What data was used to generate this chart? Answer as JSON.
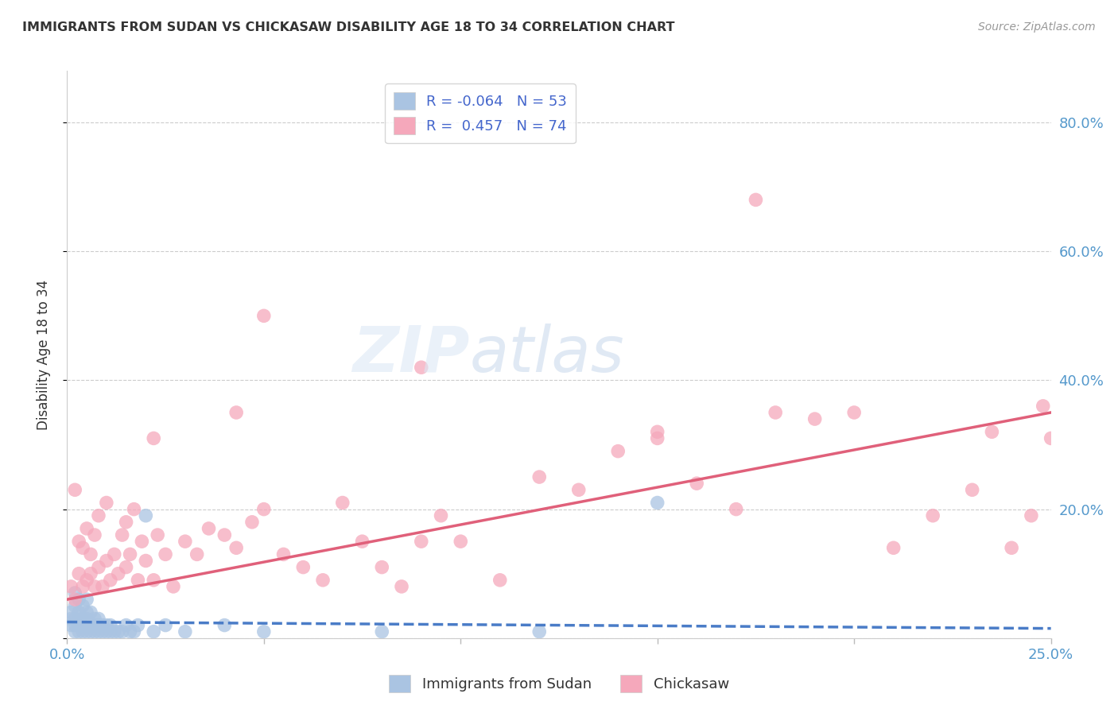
{
  "title": "IMMIGRANTS FROM SUDAN VS CHICKASAW DISABILITY AGE 18 TO 34 CORRELATION CHART",
  "source": "Source: ZipAtlas.com",
  "ylabel": "Disability Age 18 to 34",
  "xlim": [
    0.0,
    0.25
  ],
  "ylim": [
    0.0,
    0.88
  ],
  "blue_R": -0.064,
  "blue_N": 53,
  "pink_R": 0.457,
  "pink_N": 74,
  "blue_color": "#aac4e2",
  "pink_color": "#f5a8bb",
  "blue_line_color": "#4a7cc7",
  "pink_line_color": "#e0607a",
  "legend_label_blue": "Immigrants from Sudan",
  "legend_label_pink": "Chickasaw",
  "blue_scatter_x": [
    0.001,
    0.001,
    0.001,
    0.002,
    0.002,
    0.002,
    0.002,
    0.002,
    0.003,
    0.003,
    0.003,
    0.003,
    0.003,
    0.004,
    0.004,
    0.004,
    0.004,
    0.005,
    0.005,
    0.005,
    0.005,
    0.005,
    0.006,
    0.006,
    0.006,
    0.007,
    0.007,
    0.007,
    0.008,
    0.008,
    0.008,
    0.009,
    0.009,
    0.01,
    0.01,
    0.011,
    0.011,
    0.012,
    0.013,
    0.014,
    0.015,
    0.016,
    0.017,
    0.018,
    0.02,
    0.022,
    0.025,
    0.03,
    0.04,
    0.05,
    0.08,
    0.12,
    0.15
  ],
  "blue_scatter_y": [
    0.02,
    0.03,
    0.04,
    0.01,
    0.02,
    0.03,
    0.05,
    0.07,
    0.01,
    0.02,
    0.03,
    0.04,
    0.06,
    0.01,
    0.02,
    0.03,
    0.05,
    0.01,
    0.02,
    0.03,
    0.04,
    0.06,
    0.01,
    0.02,
    0.04,
    0.01,
    0.02,
    0.03,
    0.01,
    0.02,
    0.03,
    0.01,
    0.02,
    0.01,
    0.02,
    0.01,
    0.02,
    0.01,
    0.01,
    0.01,
    0.02,
    0.01,
    0.01,
    0.02,
    0.19,
    0.01,
    0.02,
    0.01,
    0.02,
    0.01,
    0.01,
    0.01,
    0.21
  ],
  "pink_scatter_x": [
    0.001,
    0.002,
    0.002,
    0.003,
    0.003,
    0.004,
    0.004,
    0.005,
    0.005,
    0.006,
    0.006,
    0.007,
    0.007,
    0.008,
    0.008,
    0.009,
    0.01,
    0.01,
    0.011,
    0.012,
    0.013,
    0.014,
    0.015,
    0.015,
    0.016,
    0.017,
    0.018,
    0.019,
    0.02,
    0.022,
    0.023,
    0.025,
    0.027,
    0.03,
    0.033,
    0.036,
    0.04,
    0.043,
    0.047,
    0.05,
    0.055,
    0.06,
    0.065,
    0.07,
    0.075,
    0.08,
    0.085,
    0.09,
    0.095,
    0.1,
    0.11,
    0.12,
    0.13,
    0.14,
    0.15,
    0.16,
    0.17,
    0.18,
    0.19,
    0.2,
    0.21,
    0.22,
    0.23,
    0.235,
    0.24,
    0.245,
    0.248,
    0.25,
    0.022,
    0.043,
    0.175,
    0.05,
    0.09,
    0.15
  ],
  "pink_scatter_y": [
    0.08,
    0.06,
    0.23,
    0.1,
    0.15,
    0.08,
    0.14,
    0.09,
    0.17,
    0.1,
    0.13,
    0.08,
    0.16,
    0.11,
    0.19,
    0.08,
    0.12,
    0.21,
    0.09,
    0.13,
    0.1,
    0.16,
    0.11,
    0.18,
    0.13,
    0.2,
    0.09,
    0.15,
    0.12,
    0.09,
    0.16,
    0.13,
    0.08,
    0.15,
    0.13,
    0.17,
    0.16,
    0.14,
    0.18,
    0.2,
    0.13,
    0.11,
    0.09,
    0.21,
    0.15,
    0.11,
    0.08,
    0.15,
    0.19,
    0.15,
    0.09,
    0.25,
    0.23,
    0.29,
    0.31,
    0.24,
    0.2,
    0.35,
    0.34,
    0.35,
    0.14,
    0.19,
    0.23,
    0.32,
    0.14,
    0.19,
    0.36,
    0.31,
    0.31,
    0.35,
    0.68,
    0.5,
    0.42,
    0.32
  ],
  "blue_line_x": [
    0.0,
    0.25
  ],
  "blue_line_y": [
    0.025,
    0.015
  ],
  "pink_line_x": [
    0.0,
    0.25
  ],
  "pink_line_y": [
    0.06,
    0.35
  ]
}
